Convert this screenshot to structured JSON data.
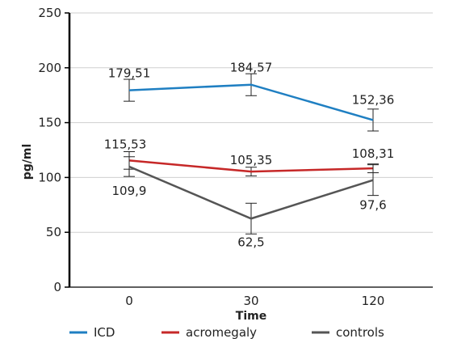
{
  "chart_data": {
    "type": "line",
    "title": "",
    "xlabel": "Time",
    "ylabel": "pg/ml",
    "categories": [
      "0",
      "30",
      "120"
    ],
    "ylim": [
      0,
      250
    ],
    "yticks": [
      "0",
      "50",
      "100",
      "150",
      "200",
      "250"
    ],
    "grid": true,
    "legend_position": "bottom",
    "series": [
      {
        "name": "ICD",
        "color": "#1f7fc2",
        "values": [
          179.51,
          184.57,
          152.36
        ],
        "labels": [
          "179,51",
          "184,57",
          "152,36"
        ],
        "error": [
          10,
          10,
          10
        ]
      },
      {
        "name": "acromegaly",
        "color": "#c62828",
        "values": [
          115.53,
          105.35,
          108.31
        ],
        "labels": [
          "115,53",
          "105,35",
          "108,31"
        ],
        "error": [
          8,
          4,
          4
        ]
      },
      {
        "name": "controls",
        "color": "#555555",
        "values": [
          109.9,
          62.5,
          97.6
        ],
        "labels": [
          "109,9",
          "62,5",
          "97,6"
        ],
        "error": [
          9,
          14,
          14
        ]
      }
    ]
  }
}
